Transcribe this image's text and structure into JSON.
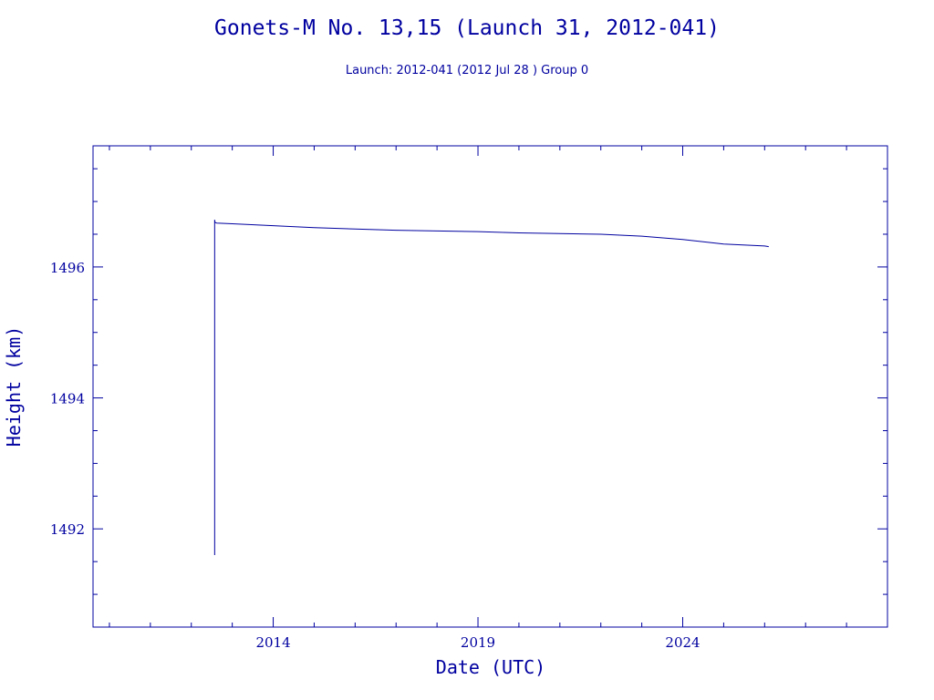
{
  "chart_data": {
    "type": "line",
    "title": "Gonets-M No. 13,15 (Launch 31, 2012-041)",
    "subtitle": "Launch: 2012-041  (2012 Jul 28 )  Group 0",
    "xlabel": "Date (UTC)",
    "ylabel": "Height (km)",
    "x_unit": "year",
    "xlim": [
      2009.6,
      2029.0
    ],
    "ylim": [
      1490.5,
      1497.85
    ],
    "x_ticks": [
      2014,
      2019,
      2024
    ],
    "x_tick_labels": [
      "2014",
      "2019",
      "2024"
    ],
    "y_ticks": [
      1492,
      1494,
      1496
    ],
    "y_tick_labels": [
      "1492",
      "1494",
      "1496"
    ],
    "x_minor_step": 1,
    "y_minor_step": 0.5,
    "grid": false,
    "legend": "none",
    "series": [
      {
        "x": [
          2012.57,
          2012.57,
          2012.58,
          2012.62,
          2013.0,
          2014.0,
          2015.0,
          2016.0,
          2017.0,
          2018.0,
          2019.0,
          2020.0,
          2021.0,
          2022.0,
          2023.0,
          2024.0,
          2025.0,
          2026.0,
          2026.1
        ],
        "values": [
          1491.6,
          1496.72,
          1496.68,
          1496.67,
          1496.66,
          1496.63,
          1496.6,
          1496.58,
          1496.56,
          1496.55,
          1496.54,
          1496.52,
          1496.51,
          1496.5,
          1496.47,
          1496.42,
          1496.35,
          1496.32,
          1496.31
        ]
      }
    ],
    "colors": {
      "axis": "#0000a0",
      "text": "#0000a0",
      "line": "#0000a0",
      "background": "#ffffff"
    }
  }
}
